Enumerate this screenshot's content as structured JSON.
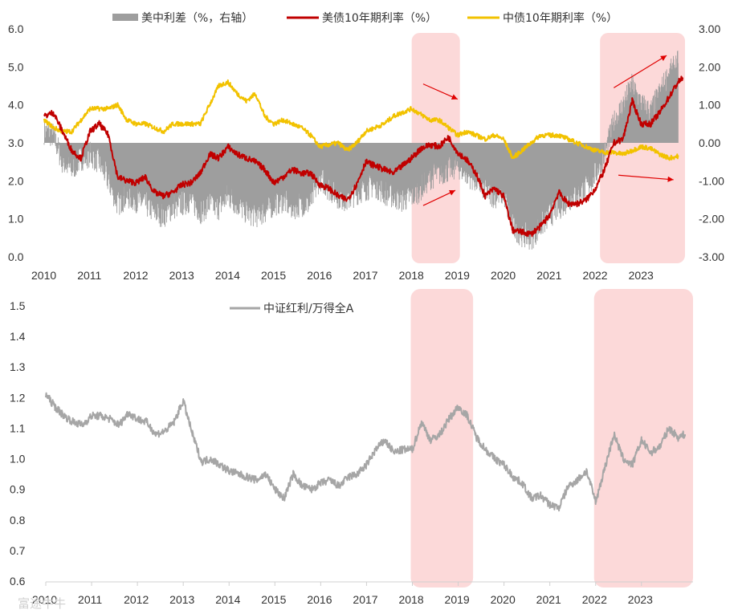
{
  "watermark": "富途牛牛",
  "chart_data": [
    {
      "type": "line",
      "title": "",
      "x_range": [
        2010,
        2023.95
      ],
      "x_ticks": [
        "2010",
        "2011",
        "2012",
        "2013",
        "2014",
        "2015",
        "2016",
        "2017",
        "2018",
        "2019",
        "2020",
        "2021",
        "2022",
        "2023"
      ],
      "ylim_left": [
        0.0,
        6.0
      ],
      "y_ticks_left": [
        "0.0",
        "1.0",
        "2.0",
        "3.0",
        "4.0",
        "5.0",
        "6.0"
      ],
      "ylim_right": [
        -3.0,
        3.0
      ],
      "y_ticks_right": [
        "-3.00",
        "-2.00",
        "-1.00",
        "0.00",
        "1.00",
        "2.00",
        "3.00"
      ],
      "legend": {
        "position": "top",
        "spread": "美中利差（%，右轴）",
        "us": "美债10年期利率（%）",
        "cn": "中债10年期利率（%）"
      },
      "highlight_ranges": [
        [
          2018.0,
          2019.05
        ],
        [
          2022.1,
          2023.95
        ]
      ],
      "arrows": [
        {
          "from": [
            2018.25,
            1.55
          ],
          "to": [
            2019.0,
            1.15
          ],
          "axis": "right"
        },
        {
          "from": [
            2018.25,
            -1.65
          ],
          "to": [
            2018.95,
            -1.25
          ],
          "axis": "right"
        },
        {
          "from": [
            2022.4,
            1.45
          ],
          "to": [
            2023.55,
            2.3
          ],
          "axis": "right"
        },
        {
          "from": [
            2022.5,
            -0.85
          ],
          "to": [
            2023.7,
            -0.97
          ],
          "axis": "right"
        }
      ],
      "series": [
        {
          "name": "美中利差（%，右轴）",
          "kind": "bar",
          "axis": "right",
          "color": "#9e9e9e",
          "x": [
            2010.0,
            2010.2,
            2010.4,
            2010.6,
            2010.8,
            2011.0,
            2011.2,
            2011.4,
            2011.6,
            2011.8,
            2012.0,
            2012.2,
            2012.4,
            2012.6,
            2012.8,
            2013.0,
            2013.2,
            2013.4,
            2013.6,
            2013.8,
            2014.0,
            2014.2,
            2014.4,
            2014.6,
            2014.8,
            2015.0,
            2015.2,
            2015.4,
            2015.6,
            2015.8,
            2016.0,
            2016.2,
            2016.4,
            2016.6,
            2016.8,
            2017.0,
            2017.2,
            2017.4,
            2017.6,
            2017.8,
            2018.0,
            2018.2,
            2018.4,
            2018.6,
            2018.8,
            2019.0,
            2019.2,
            2019.4,
            2019.6,
            2019.8,
            2020.0,
            2020.2,
            2020.4,
            2020.6,
            2020.8,
            2021.0,
            2021.2,
            2021.4,
            2021.6,
            2021.8,
            2022.0,
            2022.2,
            2022.4,
            2022.6,
            2022.8,
            2023.0,
            2023.2,
            2023.4,
            2023.6,
            2023.8
          ],
          "values": [
            0.3,
            0.2,
            -0.5,
            -0.7,
            -0.4,
            -0.3,
            -0.5,
            -1.0,
            -1.6,
            -1.4,
            -1.5,
            -1.6,
            -1.8,
            -1.9,
            -1.7,
            -1.6,
            -1.5,
            -1.8,
            -1.6,
            -1.7,
            -1.4,
            -1.6,
            -1.8,
            -1.9,
            -1.8,
            -1.6,
            -1.5,
            -1.7,
            -1.6,
            -1.6,
            -0.9,
            -1.2,
            -1.4,
            -1.5,
            -1.3,
            -1.2,
            -1.1,
            -1.3,
            -1.4,
            -1.5,
            -1.4,
            -1.2,
            -0.9,
            -0.8,
            -0.7,
            -0.6,
            -0.8,
            -1.0,
            -1.2,
            -1.4,
            -1.3,
            -2.2,
            -2.4,
            -2.5,
            -2.2,
            -1.9,
            -1.7,
            -1.5,
            -1.3,
            -1.2,
            -0.8,
            -0.3,
            0.5,
            1.0,
            1.5,
            1.0,
            0.8,
            1.3,
            1.8,
            2.1
          ]
        },
        {
          "name": "美债10年期利率（%）",
          "kind": "line",
          "axis": "left",
          "color": "#c00000",
          "x": [
            2010.0,
            2010.2,
            2010.4,
            2010.6,
            2010.8,
            2011.0,
            2011.2,
            2011.4,
            2011.6,
            2011.8,
            2012.0,
            2012.2,
            2012.4,
            2012.6,
            2012.8,
            2013.0,
            2013.2,
            2013.4,
            2013.6,
            2013.8,
            2014.0,
            2014.2,
            2014.4,
            2014.6,
            2014.8,
            2015.0,
            2015.2,
            2015.4,
            2015.6,
            2015.8,
            2016.0,
            2016.2,
            2016.4,
            2016.6,
            2016.8,
            2017.0,
            2017.2,
            2017.4,
            2017.6,
            2017.8,
            2018.0,
            2018.2,
            2018.4,
            2018.6,
            2018.8,
            2019.0,
            2019.2,
            2019.4,
            2019.6,
            2019.8,
            2020.0,
            2020.2,
            2020.4,
            2020.6,
            2020.8,
            2021.0,
            2021.2,
            2021.4,
            2021.6,
            2021.8,
            2022.0,
            2022.2,
            2022.4,
            2022.6,
            2022.8,
            2023.0,
            2023.2,
            2023.4,
            2023.6,
            2023.8,
            2023.9
          ],
          "values": [
            3.7,
            3.8,
            3.3,
            2.8,
            2.6,
            3.3,
            3.5,
            3.2,
            2.1,
            2.0,
            1.95,
            2.1,
            1.7,
            1.6,
            1.7,
            1.9,
            1.95,
            2.2,
            2.7,
            2.6,
            2.9,
            2.7,
            2.6,
            2.5,
            2.3,
            1.95,
            2.1,
            2.3,
            2.2,
            2.2,
            1.9,
            1.8,
            1.6,
            1.5,
            1.9,
            2.5,
            2.4,
            2.3,
            2.2,
            2.4,
            2.6,
            2.85,
            2.95,
            2.9,
            3.15,
            2.75,
            2.55,
            2.2,
            1.6,
            1.8,
            1.6,
            0.7,
            0.65,
            0.6,
            0.8,
            1.1,
            1.7,
            1.4,
            1.4,
            1.5,
            1.8,
            2.3,
            3.0,
            3.1,
            4.1,
            3.5,
            3.5,
            3.8,
            4.2,
            4.6,
            4.7
          ]
        },
        {
          "name": "中债10年期利率（%）",
          "kind": "line",
          "axis": "left",
          "color": "#f2c200",
          "x": [
            2010.0,
            2010.2,
            2010.4,
            2010.6,
            2010.8,
            2011.0,
            2011.2,
            2011.4,
            2011.6,
            2011.8,
            2012.0,
            2012.2,
            2012.4,
            2012.6,
            2012.8,
            2013.0,
            2013.2,
            2013.4,
            2013.6,
            2013.8,
            2014.0,
            2014.2,
            2014.4,
            2014.6,
            2014.8,
            2015.0,
            2015.2,
            2015.4,
            2015.6,
            2015.8,
            2016.0,
            2016.2,
            2016.4,
            2016.6,
            2016.8,
            2017.0,
            2017.2,
            2017.4,
            2017.6,
            2017.8,
            2018.0,
            2018.2,
            2018.4,
            2018.6,
            2018.8,
            2019.0,
            2019.2,
            2019.4,
            2019.6,
            2019.8,
            2020.0,
            2020.2,
            2020.4,
            2020.6,
            2020.8,
            2021.0,
            2021.2,
            2021.4,
            2021.6,
            2021.8,
            2022.0,
            2022.2,
            2022.4,
            2022.6,
            2022.8,
            2023.0,
            2023.2,
            2023.4,
            2023.6,
            2023.8
          ],
          "values": [
            3.6,
            3.4,
            3.3,
            3.3,
            3.6,
            3.9,
            3.9,
            3.9,
            4.0,
            3.6,
            3.5,
            3.5,
            3.4,
            3.3,
            3.5,
            3.5,
            3.5,
            3.5,
            4.0,
            4.5,
            4.6,
            4.3,
            4.1,
            4.3,
            3.7,
            3.5,
            3.6,
            3.5,
            3.4,
            3.2,
            2.9,
            2.95,
            3.0,
            2.8,
            3.0,
            3.3,
            3.4,
            3.5,
            3.7,
            3.8,
            3.9,
            3.75,
            3.6,
            3.6,
            3.4,
            3.2,
            3.3,
            3.2,
            3.1,
            3.2,
            3.1,
            2.6,
            2.8,
            3.0,
            3.2,
            3.2,
            3.2,
            3.1,
            3.0,
            2.9,
            2.8,
            2.75,
            2.75,
            2.7,
            2.8,
            2.9,
            2.85,
            2.7,
            2.6,
            2.65
          ]
        }
      ]
    },
    {
      "type": "line",
      "title": "",
      "x_range": [
        2010,
        2023.95
      ],
      "x_ticks": [
        "2010",
        "2011",
        "2012",
        "2013",
        "2014",
        "2015",
        "2016",
        "2017",
        "2018",
        "2019",
        "2020",
        "2021",
        "2022",
        "2023"
      ],
      "ylim": [
        0.6,
        1.5
      ],
      "y_ticks": [
        "0.6",
        "0.7",
        "0.8",
        "0.9",
        "1.0",
        "1.1",
        "1.2",
        "1.3",
        "1.4",
        "1.5"
      ],
      "legend": {
        "position": "top",
        "label": "中证红利/万得全A"
      },
      "highlight_ranges": [
        [
          2018.0,
          2019.15
        ],
        [
          2022.0,
          2023.95
        ]
      ],
      "series": [
        {
          "name": "中证红利/万得全A",
          "color": "#a6a6a6",
          "x": [
            2010.0,
            2010.2,
            2010.4,
            2010.6,
            2010.8,
            2011.0,
            2011.2,
            2011.4,
            2011.6,
            2011.8,
            2012.0,
            2012.2,
            2012.4,
            2012.6,
            2012.8,
            2013.0,
            2013.2,
            2013.4,
            2013.6,
            2013.8,
            2014.0,
            2014.2,
            2014.4,
            2014.6,
            2014.8,
            2015.0,
            2015.2,
            2015.4,
            2015.6,
            2015.8,
            2016.0,
            2016.2,
            2016.4,
            2016.6,
            2016.8,
            2017.0,
            2017.2,
            2017.4,
            2017.6,
            2017.8,
            2018.0,
            2018.2,
            2018.4,
            2018.6,
            2018.8,
            2019.0,
            2019.2,
            2019.4,
            2019.6,
            2019.8,
            2020.0,
            2020.2,
            2020.4,
            2020.6,
            2020.8,
            2021.0,
            2021.2,
            2021.4,
            2021.6,
            2021.8,
            2022.0,
            2022.2,
            2022.4,
            2022.6,
            2022.8,
            2023.0,
            2023.2,
            2023.4,
            2023.6,
            2023.8,
            2023.95
          ],
          "values": [
            1.21,
            1.17,
            1.14,
            1.12,
            1.11,
            1.14,
            1.14,
            1.13,
            1.11,
            1.15,
            1.13,
            1.12,
            1.08,
            1.09,
            1.12,
            1.19,
            1.08,
            0.99,
            1.0,
            0.98,
            0.96,
            0.95,
            0.94,
            0.93,
            0.95,
            0.9,
            0.87,
            0.95,
            0.91,
            0.9,
            0.92,
            0.93,
            0.91,
            0.94,
            0.95,
            0.98,
            1.03,
            1.06,
            1.02,
            1.03,
            1.03,
            1.12,
            1.06,
            1.08,
            1.13,
            1.17,
            1.14,
            1.07,
            1.03,
            1.0,
            0.98,
            0.94,
            0.92,
            0.87,
            0.88,
            0.85,
            0.84,
            0.91,
            0.93,
            0.96,
            0.86,
            0.97,
            1.08,
            1.0,
            0.98,
            1.06,
            1.02,
            1.04,
            1.1,
            1.07,
            1.08
          ]
        }
      ]
    }
  ]
}
